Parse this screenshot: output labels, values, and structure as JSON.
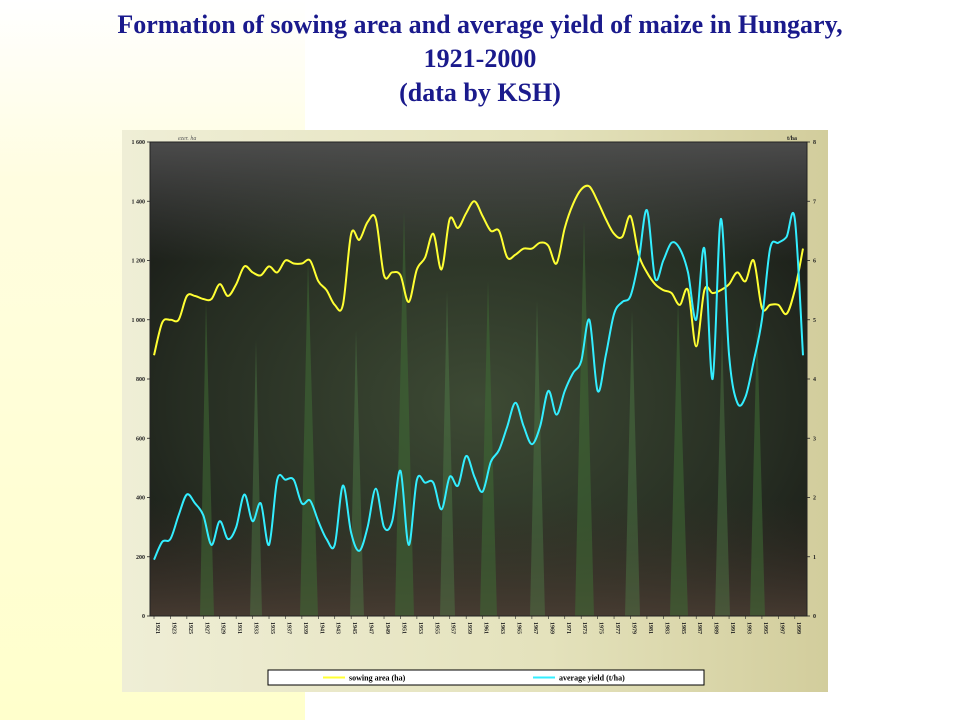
{
  "title": {
    "line1": "Formation of sowing area and average yield of maize in Hungary,",
    "line2": "1921-2000",
    "line3": "(data by KSH)"
  },
  "chart_data": {
    "type": "line",
    "left_unit": "ezer. ha",
    "right_unit": "t/ha",
    "y_left_lim": [
      0,
      1600
    ],
    "y_right_lim": [
      0,
      8
    ],
    "y_left_ticks": [
      "0",
      "200",
      "400",
      "600",
      "800",
      "1 000",
      "1 200",
      "1 400",
      "1 600"
    ],
    "y_right_ticks": [
      "0",
      "1",
      "2",
      "3",
      "4",
      "5",
      "6",
      "7",
      "8"
    ],
    "x_range": [
      1921,
      2000
    ],
    "x_tick_labels": [
      "1921",
      "1923",
      "1925",
      "1927",
      "1929",
      "1931",
      "1933",
      "1935",
      "1937",
      "1939",
      "1941",
      "1943",
      "1945",
      "1947",
      "1949",
      "1951",
      "1953",
      "1955",
      "1957",
      "1959",
      "1961",
      "1963",
      "1965",
      "1967",
      "1969",
      "1971",
      "1973",
      "1975",
      "1977",
      "1979",
      "1981",
      "1983",
      "1985",
      "1987",
      "1989",
      "1991",
      "1993",
      "1995",
      "1997",
      "1999"
    ],
    "grid": false,
    "legend_position": "bottom",
    "background_image": "maize-field-photo",
    "series": [
      {
        "name": "sowing area (ha)",
        "axis": "left",
        "color": "#ffff33",
        "x": [
          1921,
          1922,
          1923,
          1924,
          1925,
          1926,
          1927,
          1928,
          1929,
          1930,
          1931,
          1932,
          1933,
          1934,
          1935,
          1936,
          1937,
          1938,
          1939,
          1940,
          1941,
          1942,
          1943,
          1944,
          1945,
          1946,
          1947,
          1948,
          1949,
          1950,
          1951,
          1952,
          1953,
          1954,
          1955,
          1956,
          1957,
          1958,
          1959,
          1960,
          1961,
          1962,
          1963,
          1964,
          1965,
          1966,
          1967,
          1968,
          1969,
          1970,
          1971,
          1972,
          1973,
          1974,
          1975,
          1976,
          1977,
          1978,
          1979,
          1980,
          1981,
          1982,
          1983,
          1984,
          1985,
          1986,
          1987,
          1988,
          1989,
          1990,
          1991,
          1992,
          1993,
          1994,
          1995,
          1996,
          1997,
          1998,
          1999,
          2000
        ],
        "values": [
          880,
          990,
          1000,
          1000,
          1080,
          1080,
          1070,
          1070,
          1120,
          1080,
          1120,
          1180,
          1160,
          1150,
          1180,
          1160,
          1200,
          1190,
          1190,
          1200,
          1130,
          1100,
          1050,
          1050,
          1290,
          1270,
          1330,
          1340,
          1150,
          1160,
          1150,
          1060,
          1170,
          1210,
          1290,
          1170,
          1340,
          1310,
          1360,
          1400,
          1350,
          1300,
          1300,
          1210,
          1220,
          1240,
          1240,
          1260,
          1250,
          1190,
          1310,
          1390,
          1440,
          1450,
          1400,
          1340,
          1290,
          1280,
          1350,
          1220,
          1160,
          1120,
          1100,
          1090,
          1050,
          1100,
          910,
          1100,
          1090,
          1100,
          1120,
          1160,
          1130,
          1200,
          1040,
          1050,
          1050,
          1020,
          1100,
          1240
        ]
      },
      {
        "name": "average yield (t/ha)",
        "axis": "right",
        "color": "#33eeff",
        "x": [
          1921,
          1922,
          1923,
          1924,
          1925,
          1926,
          1927,
          1928,
          1929,
          1930,
          1931,
          1932,
          1933,
          1934,
          1935,
          1936,
          1937,
          1938,
          1939,
          1940,
          1941,
          1942,
          1943,
          1944,
          1945,
          1946,
          1947,
          1948,
          1949,
          1950,
          1951,
          1952,
          1953,
          1954,
          1955,
          1956,
          1957,
          1958,
          1959,
          1960,
          1961,
          1962,
          1963,
          1964,
          1965,
          1966,
          1967,
          1968,
          1969,
          1970,
          1971,
          1972,
          1973,
          1974,
          1975,
          1976,
          1977,
          1978,
          1979,
          1980,
          1981,
          1982,
          1983,
          1984,
          1985,
          1986,
          1987,
          1988,
          1989,
          1990,
          1991,
          1992,
          1993,
          1994,
          1995,
          1996,
          1997,
          1998,
          1999,
          2000
        ],
        "values": [
          0.95,
          1.25,
          1.3,
          1.7,
          2.05,
          1.9,
          1.7,
          1.2,
          1.6,
          1.3,
          1.5,
          2.05,
          1.6,
          1.9,
          1.2,
          2.3,
          2.3,
          2.3,
          1.9,
          1.95,
          1.6,
          1.3,
          1.2,
          2.2,
          1.4,
          1.1,
          1.5,
          2.15,
          1.5,
          1.6,
          2.45,
          1.2,
          2.3,
          2.25,
          2.25,
          1.8,
          2.35,
          2.2,
          2.7,
          2.35,
          2.1,
          2.6,
          2.8,
          3.2,
          3.6,
          3.2,
          2.9,
          3.2,
          3.8,
          3.4,
          3.8,
          4.1,
          4.3,
          5.0,
          3.8,
          4.4,
          5.1,
          5.3,
          5.4,
          6.0,
          6.85,
          5.7,
          6.0,
          6.3,
          6.2,
          5.8,
          5.0,
          6.2,
          4.0,
          6.7,
          4.4,
          3.6,
          3.7,
          4.3,
          5.0,
          6.2,
          6.3,
          6.4,
          6.7,
          4.4
        ]
      }
    ]
  }
}
